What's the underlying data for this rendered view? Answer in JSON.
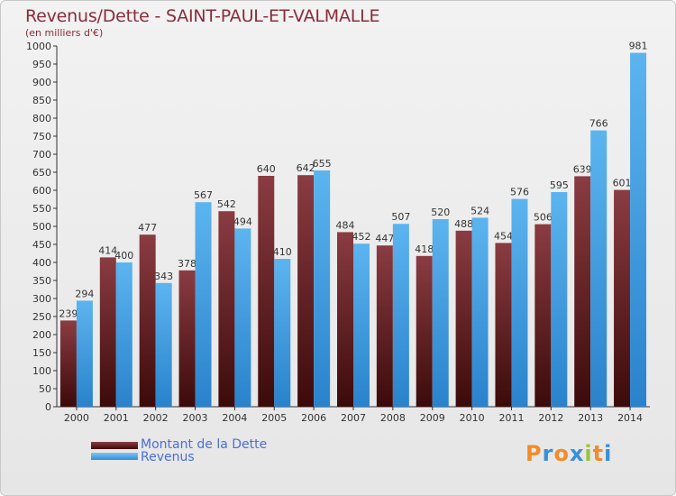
{
  "title": "Revenus/Dette - SAINT-PAUL-ET-VALMALLE",
  "subtitle": "(en milliers d'€)",
  "legend": {
    "debt_label": "Montant de la Dette",
    "revenue_label": "Revenus"
  },
  "logo": {
    "letters": [
      "P",
      "r",
      "o",
      "x",
      "i",
      "t",
      "i"
    ],
    "colors": [
      "#f28c28",
      "#3a8fd6",
      "#f28c28",
      "#3a8fd6",
      "#9ac43a",
      "#f28c28",
      "#3a8fd6"
    ]
  },
  "colors": {
    "debt": "#6b1f24",
    "revenue": "#4aa3e6"
  },
  "chart_data": {
    "type": "bar",
    "categories": [
      "2000",
      "2001",
      "2002",
      "2003",
      "2004",
      "2005",
      "2006",
      "2007",
      "2008",
      "2009",
      "2010",
      "2011",
      "2012",
      "2013",
      "2014"
    ],
    "series": [
      {
        "name": "Montant de la Dette",
        "values": [
          239,
          414,
          477,
          378,
          542,
          640,
          642,
          484,
          447,
          418,
          488,
          454,
          506,
          639,
          601
        ]
      },
      {
        "name": "Revenus",
        "values": [
          294,
          400,
          343,
          567,
          494,
          410,
          655,
          452,
          507,
          520,
          524,
          576,
          595,
          766,
          981
        ]
      }
    ],
    "ylim": [
      0,
      1000
    ],
    "yticks": [
      0,
      50,
      100,
      150,
      200,
      250,
      300,
      350,
      400,
      450,
      500,
      550,
      600,
      650,
      700,
      750,
      800,
      850,
      900,
      950,
      1000
    ],
    "grid": false,
    "legend_position": "bottom-left"
  }
}
